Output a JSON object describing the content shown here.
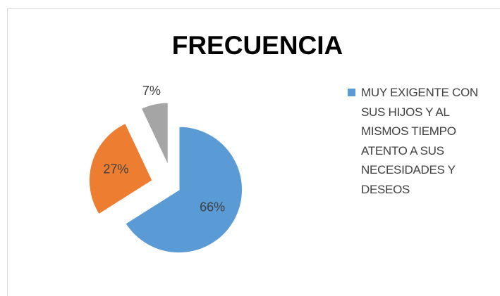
{
  "chart_data": {
    "type": "pie",
    "title": "FRECUENCIA",
    "categories": [
      "MUY EXIGENTE CON SUS HIJOS Y AL MISMOS TIEMPO ATENTO A SUS NECESIDADES Y DESEOS",
      null,
      null
    ],
    "values": [
      66,
      27,
      7
    ],
    "value_labels": [
      "66%",
      "27%",
      "7%"
    ],
    "colors": [
      "#5b9bd5",
      "#ed7d31",
      "#a5a5a5"
    ],
    "exploded": true
  }
}
